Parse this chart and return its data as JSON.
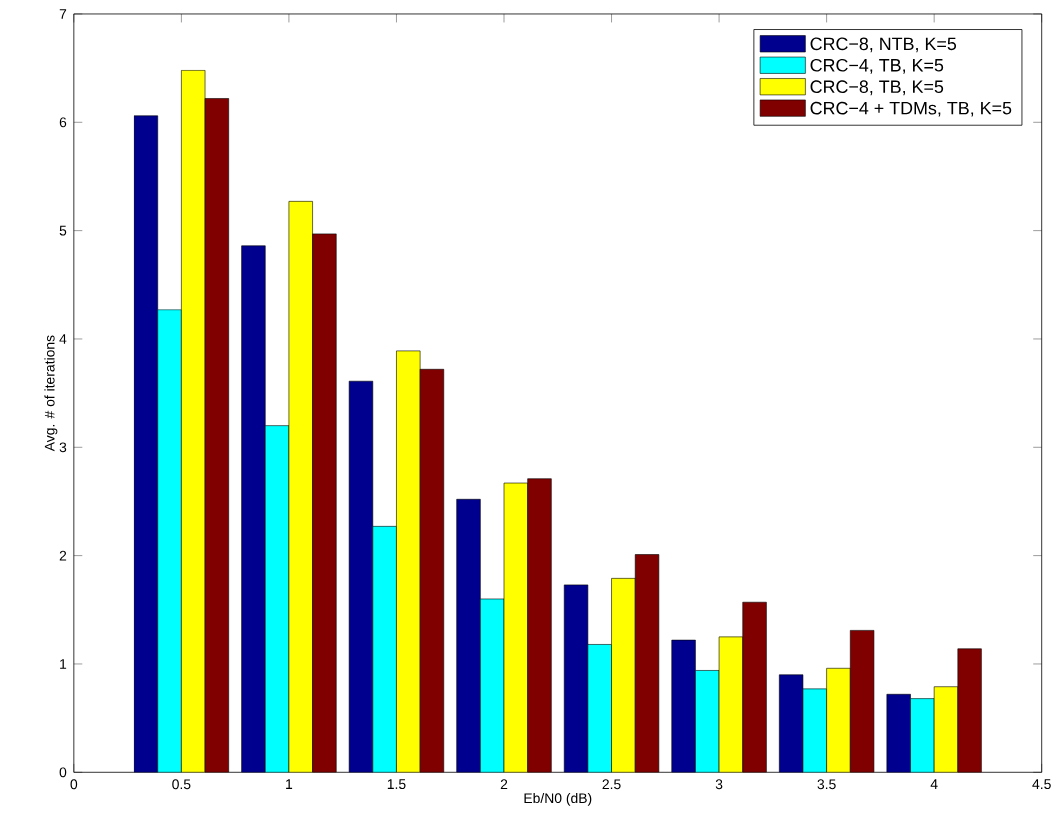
{
  "chart_data": {
    "type": "bar",
    "xlabel": "Eb/N0 (dB)",
    "ylabel": "Avg. # of iterations",
    "x": [
      0.5,
      1,
      1.5,
      2,
      2.5,
      3,
      3.5,
      4
    ],
    "series": [
      {
        "name": "CRC−8, NTB, K=5",
        "color": "#00008f",
        "values": [
          6.06,
          4.86,
          3.61,
          2.52,
          1.73,
          1.22,
          0.9,
          0.72
        ]
      },
      {
        "name": "CRC−4, TB, K=5",
        "color": "#00ffff",
        "values": [
          4.27,
          3.2,
          2.27,
          1.6,
          1.18,
          0.94,
          0.77,
          0.68
        ]
      },
      {
        "name": "CRC−8, TB, K=5",
        "color": "#ffff00",
        "values": [
          6.48,
          5.27,
          3.89,
          2.67,
          1.79,
          1.25,
          0.96,
          0.79
        ]
      },
      {
        "name": "CRC−4 + TDMs, TB, K=5",
        "color": "#800000",
        "values": [
          6.22,
          4.97,
          3.72,
          2.71,
          2.01,
          1.57,
          1.31,
          1.14
        ]
      }
    ],
    "xlim": [
      0,
      4.5
    ],
    "xticks": [
      0,
      0.5,
      1,
      1.5,
      2,
      2.5,
      3,
      3.5,
      4,
      4.5
    ],
    "ylim": [
      0,
      7
    ],
    "yticks": [
      0,
      1,
      2,
      3,
      4,
      5,
      6,
      7
    ],
    "legend": "top right",
    "grid": false
  }
}
